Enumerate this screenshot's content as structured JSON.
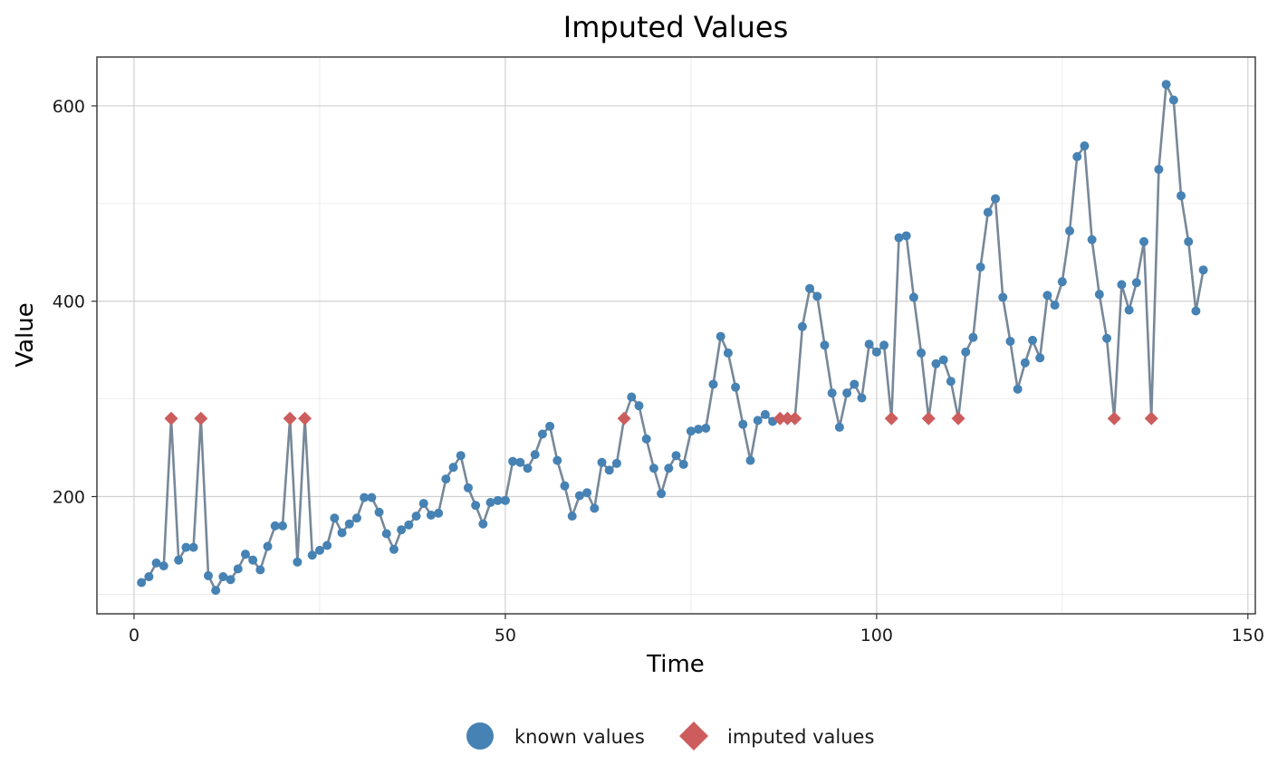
{
  "chart_data": {
    "type": "line",
    "title": "Imputed Values",
    "xlabel": "Time",
    "ylabel": "Value",
    "xlim": [
      -5,
      151
    ],
    "ylim": [
      80,
      650
    ],
    "x_ticks": [
      0,
      50,
      100,
      150
    ],
    "y_ticks": [
      200,
      400,
      600
    ],
    "x_tick_labels": [
      "0",
      "50",
      "100",
      "150"
    ],
    "y_tick_labels": [
      "200",
      "400",
      "600"
    ],
    "x_minor": [
      25,
      75,
      125
    ],
    "y_minor": [
      100,
      300,
      500
    ],
    "grid": true,
    "legend_position": "bottom",
    "colors": {
      "line": "#778899",
      "known": "#4682B4",
      "imputed": "#CD5C5C"
    },
    "legend": [
      {
        "label": "known values",
        "shape": "circle"
      },
      {
        "label": "imputed values",
        "shape": "diamond"
      }
    ],
    "x": [
      1,
      2,
      3,
      4,
      5,
      6,
      7,
      8,
      9,
      10,
      11,
      12,
      13,
      14,
      15,
      16,
      17,
      18,
      19,
      20,
      21,
      22,
      23,
      24,
      25,
      26,
      27,
      28,
      29,
      30,
      31,
      32,
      33,
      34,
      35,
      36,
      37,
      38,
      39,
      40,
      41,
      42,
      43,
      44,
      45,
      46,
      47,
      48,
      49,
      50,
      51,
      52,
      53,
      54,
      55,
      56,
      57,
      58,
      59,
      60,
      61,
      62,
      63,
      64,
      65,
      66,
      67,
      68,
      69,
      70,
      71,
      72,
      73,
      74,
      75,
      76,
      77,
      78,
      79,
      80,
      81,
      82,
      83,
      84,
      85,
      86,
      87,
      88,
      89,
      90,
      91,
      92,
      93,
      94,
      95,
      96,
      97,
      98,
      99,
      100,
      101,
      102,
      103,
      104,
      105,
      106,
      107,
      108,
      109,
      110,
      111,
      112,
      113,
      114,
      115,
      116,
      117,
      118,
      119,
      120,
      121,
      122,
      123,
      124,
      125,
      126,
      127,
      128,
      129,
      130,
      131,
      132,
      133,
      134,
      135,
      136,
      137,
      138,
      139,
      140,
      141,
      142,
      143,
      144
    ],
    "values": [
      112,
      118,
      132,
      129,
      280,
      135,
      148,
      148,
      280,
      119,
      104,
      118,
      115,
      126,
      141,
      135,
      125,
      149,
      170,
      170,
      280,
      133,
      280,
      140,
      145,
      150,
      178,
      163,
      172,
      178,
      199,
      199,
      184,
      162,
      146,
      166,
      171,
      180,
      193,
      181,
      183,
      218,
      230,
      242,
      209,
      191,
      172,
      194,
      196,
      196,
      236,
      235,
      229,
      243,
      264,
      272,
      237,
      211,
      180,
      201,
      204,
      188,
      235,
      227,
      234,
      280,
      302,
      293,
      259,
      229,
      203,
      229,
      242,
      233,
      267,
      269,
      270,
      315,
      364,
      347,
      312,
      274,
      237,
      278,
      284,
      277,
      280,
      280,
      280,
      374,
      413,
      405,
      355,
      306,
      271,
      306,
      315,
      301,
      356,
      348,
      355,
      280,
      465,
      467,
      404,
      347,
      280,
      336,
      340,
      318,
      280,
      348,
      363,
      435,
      491,
      505,
      404,
      359,
      310,
      337,
      360,
      342,
      406,
      396,
      420,
      472,
      548,
      559,
      463,
      407,
      362,
      280,
      417,
      391,
      419,
      461,
      280,
      535,
      622,
      606,
      508,
      461,
      390,
      432
    ],
    "imputed": [
      5,
      9,
      21,
      23,
      66,
      87,
      88,
      89,
      102,
      107,
      111,
      132,
      137
    ]
  }
}
